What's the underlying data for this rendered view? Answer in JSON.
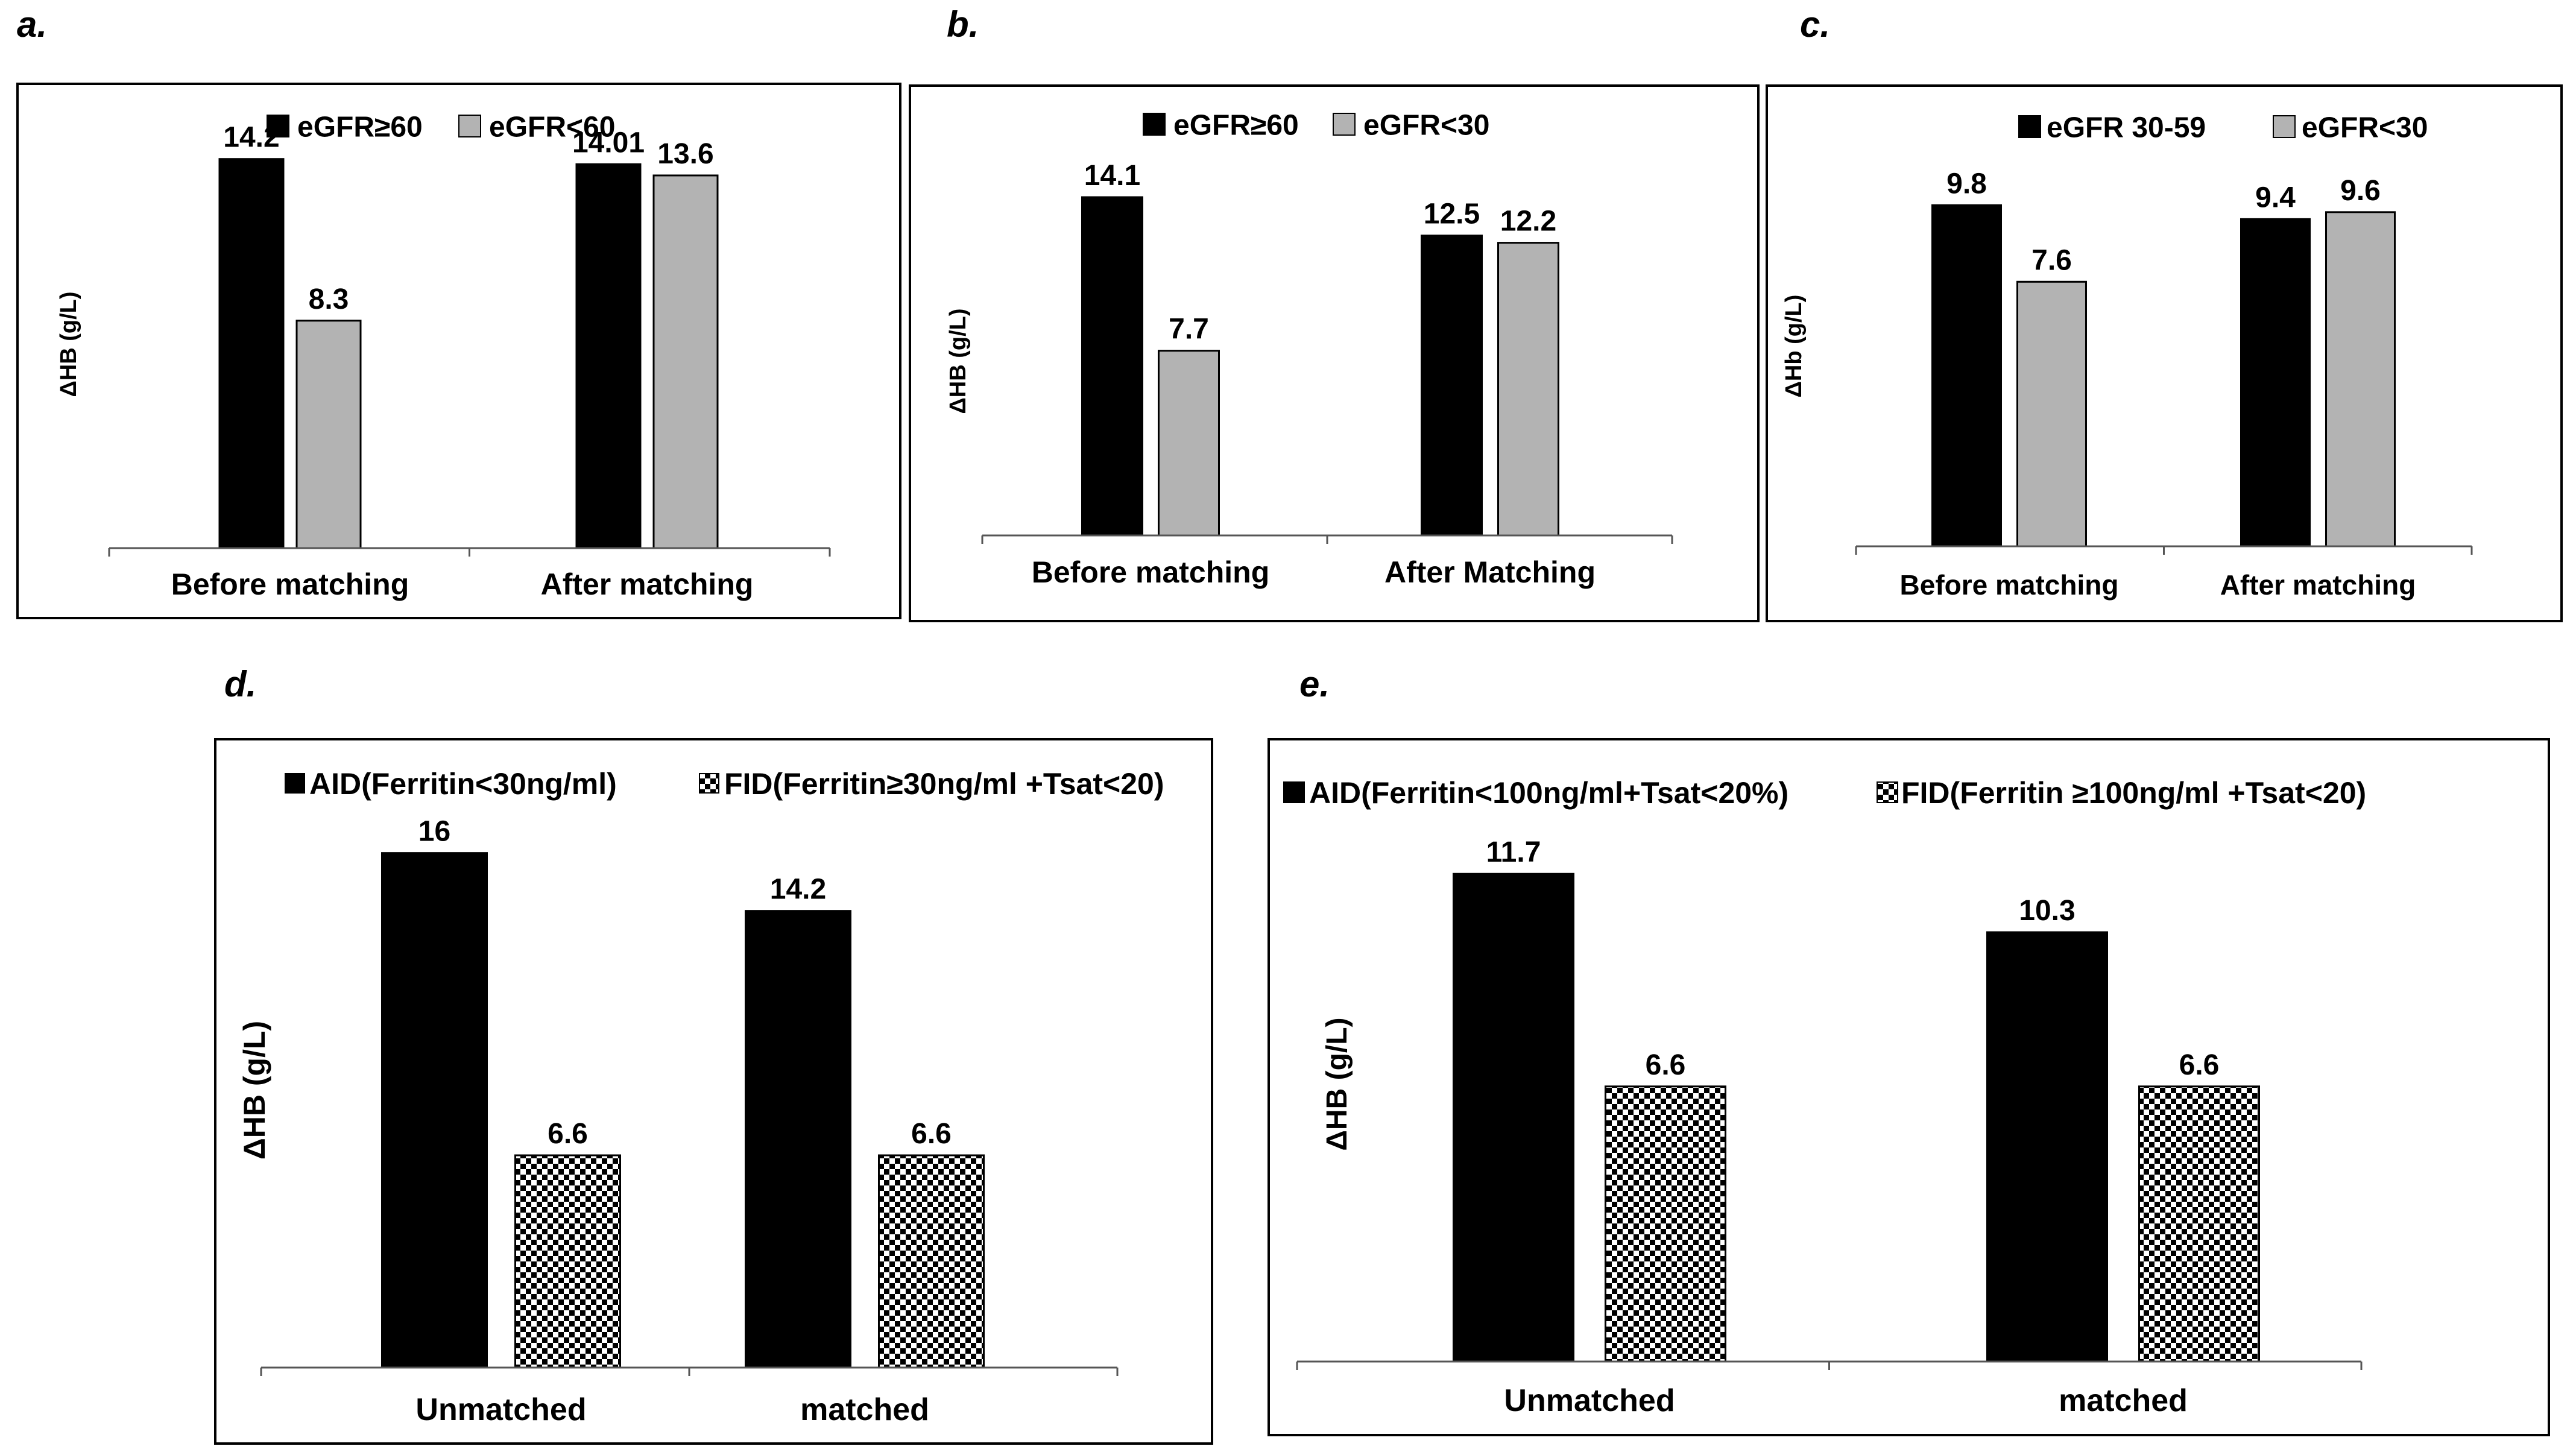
{
  "colors": {
    "black_bar": "#000000",
    "grey_bar": "#b3b3b3",
    "axis": "#555555"
  },
  "chart_data": [
    {
      "panel": "a.",
      "type": "bar",
      "title": "",
      "xlabel": "",
      "ylabel": "ΔHB (g/L)",
      "ylim": [
        0,
        16.9
      ],
      "categories": [
        "Before matching",
        "After matching"
      ],
      "legend_placement": "top-center",
      "series": [
        {
          "name": "eGFR≥60",
          "pattern": "solid-black",
          "values": [
            14.2,
            14.01
          ],
          "labels": [
            "14.2",
            "14.01"
          ]
        },
        {
          "name": "eGFR<60",
          "pattern": "solid-grey",
          "values": [
            8.3,
            13.6
          ],
          "labels": [
            "8.3",
            "13.6"
          ]
        }
      ]
    },
    {
      "panel": "b.",
      "type": "bar",
      "title": "",
      "xlabel": "",
      "ylabel": "ΔHB (g/L)",
      "ylim": [
        0,
        18.7
      ],
      "categories": [
        "Before matching",
        "After Matching"
      ],
      "legend_placement": "top-center",
      "series": [
        {
          "name": "eGFR≥60",
          "pattern": "solid-black",
          "values": [
            14.1,
            12.5
          ],
          "labels": [
            "14.1",
            "12.5"
          ]
        },
        {
          "name": "eGFR<30",
          "pattern": "solid-grey",
          "values": [
            7.7,
            12.2
          ],
          "labels": [
            "7.7",
            "12.2"
          ]
        }
      ]
    },
    {
      "panel": "c.",
      "type": "bar",
      "title": "",
      "xlabel": "",
      "ylabel": "ΔHb (g/L)",
      "ylim": [
        0,
        13.2
      ],
      "categories": [
        "Before matching",
        "After matching"
      ],
      "legend_placement": "top-center",
      "series": [
        {
          "name": "eGFR 30-59",
          "pattern": "solid-black",
          "values": [
            9.8,
            9.4
          ],
          "labels": [
            "9.8",
            "9.4"
          ]
        },
        {
          "name": "eGFR<30",
          "pattern": "solid-grey",
          "values": [
            7.6,
            9.6
          ],
          "labels": [
            "7.6",
            "9.6"
          ]
        }
      ]
    },
    {
      "panel": "d.",
      "type": "bar",
      "title": "",
      "xlabel": "",
      "ylabel": "ΔHB (g/L)",
      "ylim": [
        0,
        19.5
      ],
      "categories": [
        "Unmatched",
        "matched"
      ],
      "legend_placement": "top-center",
      "series": [
        {
          "name": "AID(Ferritin<30ng/ml)",
          "pattern": "solid-black",
          "values": [
            16,
            14.2
          ],
          "labels": [
            "16",
            "14.2"
          ]
        },
        {
          "name": "FID(Ferritin≥30ng/ml +Tsat<20)",
          "pattern": "checker",
          "values": [
            6.6,
            6.6
          ],
          "labels": [
            "6.6",
            "6.6"
          ]
        }
      ]
    },
    {
      "panel": "e.",
      "type": "bar",
      "title": "",
      "xlabel": "",
      "ylabel": "ΔHB (g/L)",
      "ylim": [
        0,
        14.9
      ],
      "categories": [
        "Unmatched",
        "matched"
      ],
      "legend_placement": "top-center",
      "series": [
        {
          "name": "AID(Ferritin<100ng/ml+Tsat<20%)",
          "pattern": "solid-black",
          "values": [
            11.7,
            10.3
          ],
          "labels": [
            "11.7",
            "10.3"
          ]
        },
        {
          "name": "FID(Ferritin  ≥100ng/ml +Tsat<20)",
          "pattern": "checker",
          "values": [
            6.6,
            6.6
          ],
          "labels": [
            "6.6",
            "6.6"
          ]
        }
      ]
    }
  ]
}
